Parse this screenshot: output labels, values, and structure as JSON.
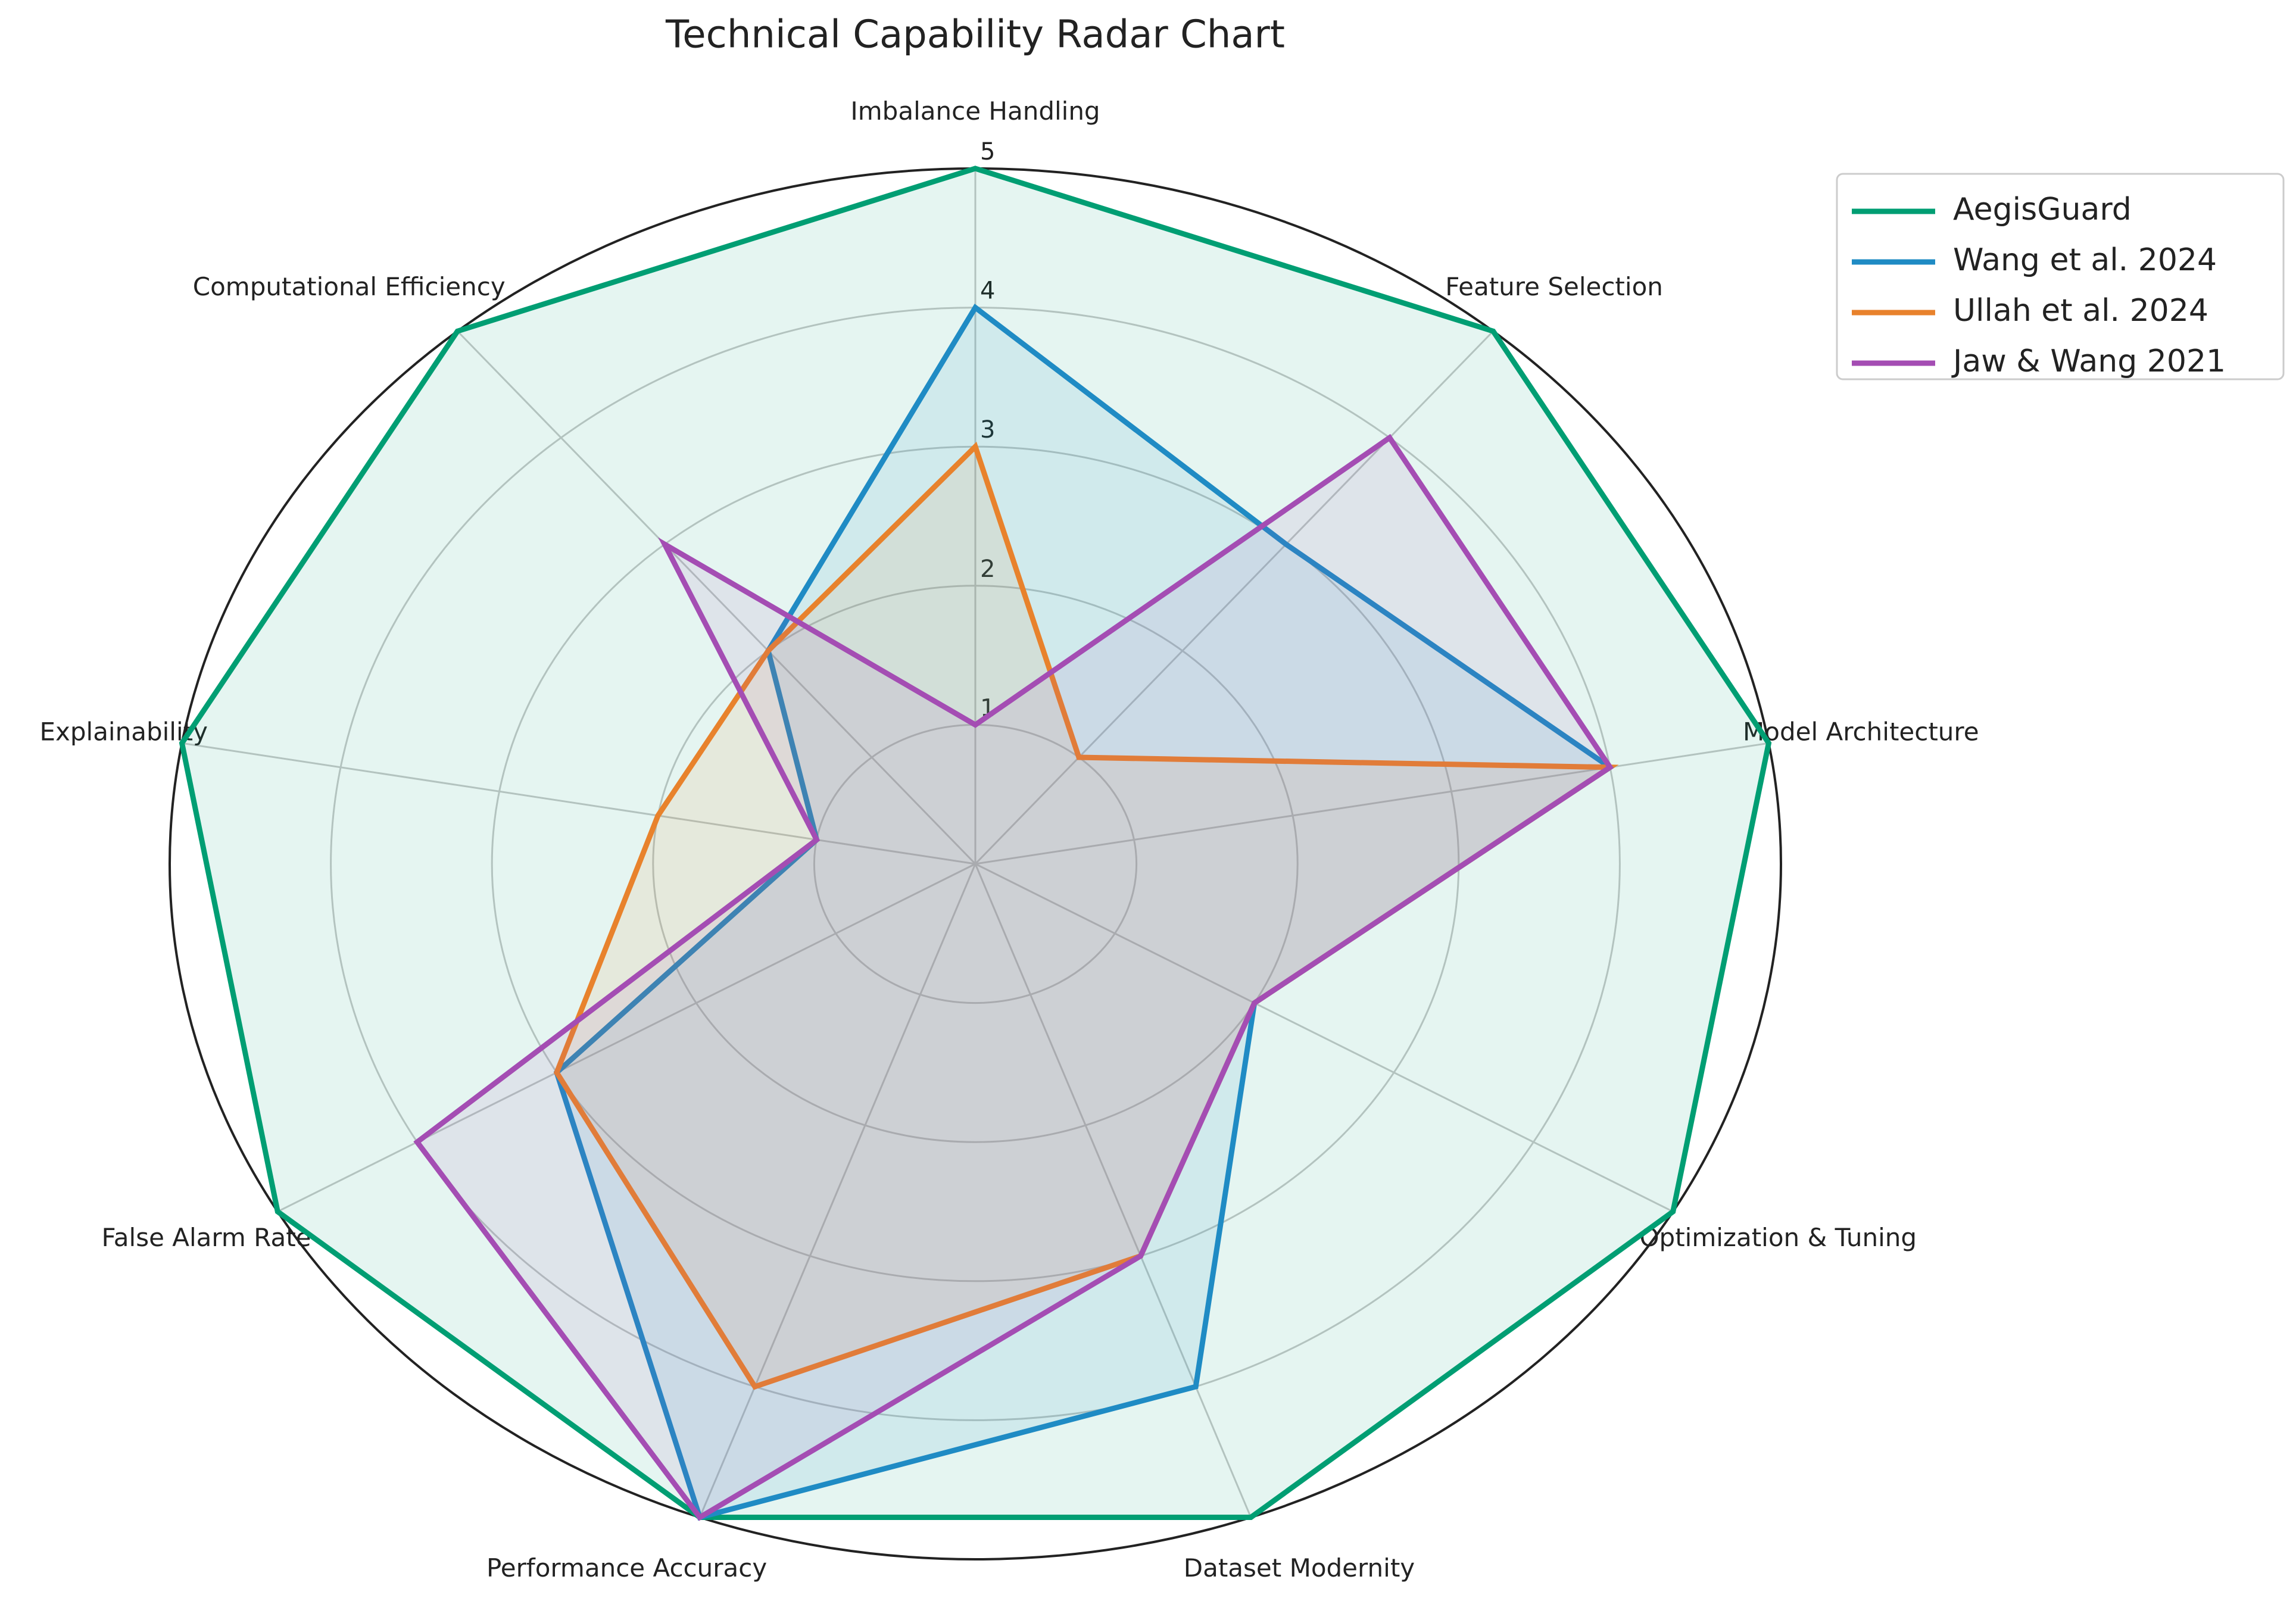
{
  "chart_data": {
    "type": "radar",
    "title": "Technical Capability Radar Chart",
    "categories": [
      "Imbalance Handling",
      "Feature Selection",
      "Model Architecture",
      "Optimization & Tuning",
      "Dataset Modernity",
      "Performance Accuracy",
      "False Alarm Rate",
      "Explainability",
      "Computational Efficiency"
    ],
    "ylim": [
      0,
      5
    ],
    "yticks": [
      1,
      2,
      3,
      4,
      5
    ],
    "grid": true,
    "legend": "upper right",
    "series": [
      {
        "name": "AegisGuard",
        "color": "#009e73",
        "values": [
          5,
          5,
          5,
          5,
          5,
          5,
          5,
          5,
          5
        ]
      },
      {
        "name": "Wang et al. 2024",
        "color": "#1f8bc4",
        "values": [
          4,
          3,
          4,
          2,
          4,
          5,
          3,
          1,
          2
        ]
      },
      {
        "name": "Ullah et al. 2024",
        "color": "#e8822c",
        "values": [
          3,
          1,
          4,
          2,
          3,
          4,
          3,
          2,
          2
        ]
      },
      {
        "name": "Jaw & Wang 2021",
        "color": "#a44db3",
        "values": [
          1,
          4,
          4,
          2,
          3,
          5,
          4,
          1,
          3
        ]
      }
    ]
  }
}
